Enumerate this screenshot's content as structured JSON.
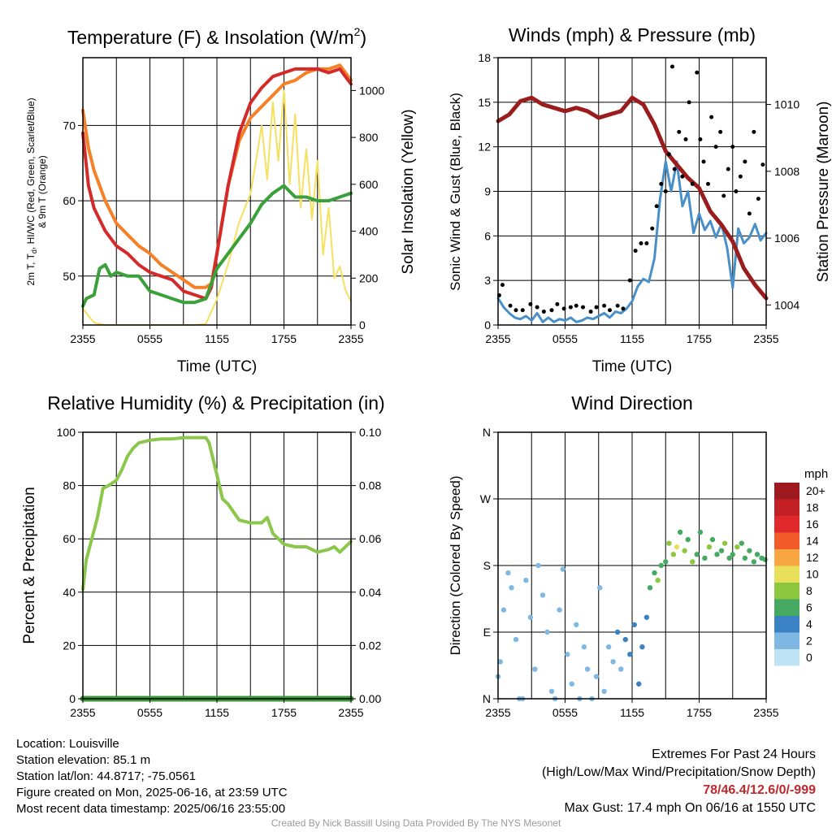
{
  "panels": {
    "temp": {
      "title": "Temperature (F) & Insolation (W/m",
      "title_sup": "2",
      "title_end": ")",
      "ylabel_line1": "2m T, T, HI/WC (Red, Green, Scarlet/Blue)",
      "ylabel_line1_a": "2m T, T",
      "ylabel_line1_sub": "d",
      "ylabel_line1_b": ", HI/WC (Red, Green, Scarlet/Blue)",
      "ylabel_line2": "& 9m T (Orange)",
      "y2label": "Solar Insolation (Yellow)",
      "xlabel": "Time (UTC)"
    },
    "wind": {
      "title": "Winds (mph) & Pressure (mb)",
      "ylabel": "Sonic Wind & Gust (Blue, Black)",
      "y2label": "Station Pressure (Maroon)",
      "xlabel": "Time (UTC)"
    },
    "rh": {
      "title": "Relative Humidity (%) & Precipitation (in)",
      "ylabel": "Percent & Precipitation"
    },
    "dir": {
      "title": "Wind Direction",
      "ylabel": "Direction (Colored By Speed)",
      "legend_title": "mph",
      "legend_labels": [
        "20+",
        "18",
        "16",
        "14",
        "12",
        "10",
        "8",
        "6",
        "4",
        "2",
        "0"
      ]
    }
  },
  "info": {
    "location": "Location: Louisville",
    "elevation": "Station elevation: 85.1 m",
    "latlon": "Station lat/lon: 44.8717; -75.0561",
    "created": "Figure created on Mon, 2025-06-16, at 23:59 UTC",
    "recent": "Most recent data timestamp: 2025/06/16 23:55:00"
  },
  "extremes": {
    "title": "Extremes For Past 24 Hours",
    "subtitle": "(High/Low/Max Wind/Precipitation/Snow Depth)",
    "values": "78/46.4/12.6/0/-999",
    "gust": "Max Gust: 17.4 mph On 06/16 at 1550 UTC"
  },
  "credit": "Created By Nick Bassill Using Data Provided By The NYS Mesonet",
  "colors": {
    "temp": "#d42a2a",
    "dewpoint": "#3aa03a",
    "temp9m": "#f58025",
    "solar": "#f5e060",
    "wind": "#4a90c8",
    "gust": "#000000",
    "pressure": "#9a1c1c",
    "rh": "#8ac74a",
    "precip": "#3a9a3a"
  },
  "chart_data": [
    {
      "type": "line",
      "panel": "temp",
      "title": "Temperature (F) & Insolation (W/m2)",
      "xlabel": "Time (UTC)",
      "x_ticks": [
        "2355",
        "0555",
        "1155",
        "1755",
        "2355"
      ],
      "xlim": [
        0,
        24
      ],
      "ylim": [
        43.5,
        79
      ],
      "y_ticks": [
        50,
        60,
        70
      ],
      "y2lim": [
        0,
        1140
      ],
      "y2_ticks": [
        0,
        200,
        400,
        600,
        800,
        1000
      ],
      "grid": true,
      "series": [
        {
          "name": "2m T",
          "axis": "y",
          "x": [
            0,
            0.5,
            1,
            2,
            3,
            4,
            5,
            6,
            7,
            8,
            9,
            10,
            11,
            11.5,
            12,
            13,
            14,
            15,
            16,
            17,
            18,
            19,
            20,
            21,
            22,
            23,
            23.5,
            24
          ],
          "values": [
            69,
            62,
            59,
            56,
            54,
            53,
            51.5,
            50.5,
            50,
            49.5,
            48,
            47.5,
            47,
            48.5,
            53,
            62,
            69,
            73,
            75,
            76.5,
            77,
            77.5,
            77.5,
            77.5,
            77,
            77.5,
            76.5,
            75.5
          ]
        },
        {
          "name": "Td",
          "axis": "y",
          "x": [
            0,
            0.3,
            1,
            1.5,
            2,
            2.5,
            3,
            4,
            5,
            6,
            7,
            8,
            9,
            10,
            11,
            11.5,
            12,
            13,
            14,
            15,
            16,
            17,
            18,
            19,
            20,
            21,
            22,
            23,
            24
          ],
          "values": [
            46,
            47,
            47.5,
            51,
            51.5,
            50,
            50.5,
            50,
            50,
            48,
            47.5,
            47,
            46.5,
            46.5,
            47,
            49,
            51,
            53,
            55,
            57,
            59.5,
            61,
            62,
            60.5,
            60.5,
            60,
            60,
            60.5,
            61
          ]
        },
        {
          "name": "9m T",
          "axis": "y",
          "x": [
            0,
            0.5,
            1,
            2,
            3,
            4,
            5,
            6,
            7,
            8,
            9,
            10,
            11,
            11.5,
            12,
            13,
            14,
            15,
            16,
            17,
            18,
            19,
            20,
            21,
            22,
            23,
            23.5,
            24
          ],
          "values": [
            72,
            67,
            64,
            60,
            57,
            55.5,
            54,
            53,
            51.5,
            50.5,
            49.5,
            48.5,
            48.5,
            49,
            53,
            62,
            68,
            71,
            72.5,
            74,
            75.5,
            76,
            77,
            77.5,
            77.5,
            78,
            77,
            76
          ]
        },
        {
          "name": "Solar",
          "axis": "y2",
          "x": [
            0,
            0.5,
            1,
            2,
            3,
            4,
            5,
            6,
            7,
            8,
            9,
            10,
            11,
            12,
            13,
            14,
            15,
            15.5,
            16,
            16.5,
            17,
            17.5,
            18,
            18.5,
            19,
            19.5,
            20,
            20.5,
            21,
            21.5,
            22,
            22.5,
            23,
            23.5,
            24
          ],
          "values": [
            70,
            40,
            10,
            0,
            0,
            0,
            0,
            0,
            0,
            0,
            0,
            0,
            5,
            110,
            260,
            440,
            560,
            700,
            850,
            620,
            950,
            700,
            1000,
            600,
            900,
            500,
            750,
            450,
            700,
            300,
            500,
            200,
            250,
            150,
            100
          ]
        }
      ]
    },
    {
      "type": "line",
      "panel": "wind",
      "title": "Winds (mph) & Pressure (mb)",
      "xlabel": "Time (UTC)",
      "x_ticks": [
        "2355",
        "0555",
        "1155",
        "1755",
        "2355"
      ],
      "xlim": [
        0,
        24
      ],
      "ylim": [
        0,
        18
      ],
      "y_ticks": [
        0,
        3,
        6,
        9,
        12,
        15,
        18
      ],
      "y2lim": [
        1003.4,
        1011.4
      ],
      "y2_ticks": [
        1004,
        1006,
        1008,
        1010
      ],
      "grid": true,
      "series": [
        {
          "name": "Sonic Wind",
          "axis": "y",
          "x": [
            0,
            0.5,
            1,
            1.5,
            2,
            2.5,
            3,
            3.5,
            4,
            4.5,
            5,
            5.5,
            6,
            6.5,
            7,
            7.5,
            8,
            8.5,
            9,
            9.5,
            10,
            10.5,
            11,
            11.5,
            12,
            12.5,
            13,
            13.5,
            14,
            14.5,
            15,
            15.5,
            16,
            16.5,
            17,
            17.5,
            18,
            18.5,
            19,
            19.5,
            20,
            20.5,
            21,
            21.5,
            22,
            22.5,
            23,
            23.5,
            24
          ],
          "values": [
            1.8,
            1.2,
            0.8,
            0.5,
            0.4,
            0.6,
            0.3,
            0.8,
            0.2,
            0.5,
            0.2,
            0.4,
            0.3,
            0.5,
            0.2,
            0.3,
            0.5,
            0.4,
            0.6,
            0.8,
            0.5,
            0.9,
            0.8,
            1.1,
            1.6,
            2.6,
            3.1,
            2.9,
            4.5,
            8.5,
            11,
            9,
            11,
            8,
            9,
            6.2,
            7.5,
            6.4,
            7,
            5.9,
            6.8,
            5.2,
            2.5,
            6.5,
            5.5,
            5.9,
            6.8,
            5.7,
            6.2
          ]
        },
        {
          "name": "Gust",
          "axis": "y",
          "x": [
            0.1,
            0.4,
            1.1,
            1.6,
            2.2,
            2.9,
            3.5,
            4.1,
            4.8,
            5.3,
            5.9,
            6.5,
            7,
            7.6,
            8.3,
            8.8,
            9.5,
            10,
            10.7,
            11.2,
            11.8,
            12.3,
            12.8,
            13.3,
            13.8,
            14.2,
            14.6,
            15,
            15.3,
            15.6,
            15.8,
            16.2,
            16.5,
            16.8,
            17.1,
            17.4,
            17.8,
            18.1,
            18.4,
            18.8,
            19.1,
            19.5,
            19.9,
            20.2,
            20.6,
            21,
            21.3,
            21.7,
            22.1,
            22.5,
            22.9,
            23.3,
            23.7
          ],
          "values": [
            2,
            2.7,
            1.3,
            1,
            1,
            1.4,
            1.2,
            0.9,
            1,
            1.4,
            1.1,
            1.2,
            1.3,
            1.2,
            0.9,
            1.2,
            1.3,
            1,
            1.3,
            1.1,
            3,
            5,
            5.5,
            5.5,
            6.5,
            8,
            9.5,
            9,
            11.5,
            17.4,
            10.5,
            13,
            10,
            12.5,
            15,
            9.5,
            17,
            12.5,
            11,
            9.5,
            14,
            12,
            13,
            8.7,
            10.5,
            12,
            9,
            10,
            11,
            7.5,
            13,
            8.5,
            10.8
          ]
        },
        {
          "name": "Pressure",
          "axis": "y2",
          "x": [
            0,
            1,
            2,
            3,
            4,
            5,
            6,
            7,
            8,
            9,
            10,
            11,
            12,
            12.5,
            13,
            14,
            15,
            16,
            17,
            18,
            19,
            20,
            21,
            22,
            23,
            24
          ],
          "values": [
            1009.5,
            1009.7,
            1010.1,
            1010.2,
            1010,
            1009.9,
            1009.8,
            1009.9,
            1009.8,
            1009.6,
            1009.7,
            1009.8,
            1010.2,
            1010.1,
            1010,
            1009.4,
            1008.6,
            1008.2,
            1007.8,
            1007.5,
            1006.8,
            1006.4,
            1005.9,
            1005.1,
            1004.6,
            1004.2
          ]
        }
      ]
    },
    {
      "type": "line",
      "panel": "rh",
      "title": "Relative Humidity (%) & Precipitation (in)",
      "ylabel": "Percent & Precipitation",
      "x_ticks": [
        "2355",
        "0555",
        "1155",
        "1755",
        "2355"
      ],
      "xlim": [
        0,
        24
      ],
      "ylim": [
        0,
        100
      ],
      "y_ticks": [
        0,
        20,
        40,
        60,
        80,
        100
      ],
      "y2lim": [
        0,
        0.1
      ],
      "y2_ticks": [
        "0.00",
        "0.02",
        "0.04",
        "0.06",
        "0.08",
        "0.10"
      ],
      "grid": true,
      "series": [
        {
          "name": "RH",
          "axis": "y",
          "x": [
            0,
            0.3,
            0.8,
            1.3,
            1.8,
            2.3,
            3,
            3.5,
            4,
            4.5,
            5,
            6,
            7,
            8,
            9,
            10,
            10.5,
            11,
            11.3,
            12,
            12.5,
            13,
            14,
            15,
            16,
            16.5,
            17,
            18,
            19,
            20,
            21,
            22,
            22.5,
            23,
            23.5,
            24
          ],
          "values": [
            41,
            52,
            60,
            68,
            79,
            80,
            82,
            86,
            91,
            94,
            96,
            97,
            97.5,
            97.5,
            98,
            98,
            98,
            98,
            96,
            84,
            75,
            73,
            67,
            66,
            66,
            68,
            62,
            58,
            57,
            57,
            55,
            56,
            57,
            55,
            57,
            59
          ]
        },
        {
          "name": "Precipitation",
          "axis": "y2",
          "x": [
            0,
            24
          ],
          "values": [
            0,
            0
          ]
        }
      ]
    },
    {
      "type": "scatter",
      "panel": "dir",
      "title": "Wind Direction",
      "ylabel": "Direction (Colored By Speed)",
      "x_ticks": [
        "2355",
        "0555",
        "1155",
        "1755",
        "2355"
      ],
      "xlim": [
        0,
        24
      ],
      "ylim": [
        0,
        360
      ],
      "y_ticks": [
        "N",
        "E",
        "S",
        "W",
        "N"
      ],
      "grid": true,
      "legend": {
        "title": "mph",
        "labels": [
          "20+",
          "18",
          "16",
          "14",
          "12",
          "10",
          "8",
          "6",
          "4",
          "2",
          "0"
        ],
        "colors": [
          "#9e1a1e",
          "#c42127",
          "#e0282d",
          "#f15a29",
          "#f7a541",
          "#e8e05a",
          "#8dc63f",
          "#46a962",
          "#3b82c4",
          "#7fb8e2",
          "#bfe3f5"
        ],
        "position": "right"
      },
      "series": [
        {
          "name": "Direction",
          "x": [
            0,
            0.2,
            0.5,
            0.9,
            1.2,
            1.6,
            1.9,
            2.2,
            2.5,
            2.9,
            3.3,
            3.6,
            4,
            4.4,
            4.8,
            5.1,
            5.5,
            5.8,
            6.2,
            6.6,
            7,
            7.3,
            7.7,
            8,
            8.4,
            8.8,
            9.1,
            9.5,
            9.9,
            10.3,
            10.7,
            11,
            11.4,
            11.8,
            12.2,
            12.6,
            12.9,
            13.3,
            13.6,
            14,
            14.3,
            14.6,
            15,
            15.3,
            15.7,
            16,
            16.3,
            16.7,
            17,
            17.4,
            17.8,
            18.1,
            18.5,
            18.9,
            19.2,
            19.6,
            20,
            20.3,
            20.7,
            21,
            21.4,
            21.8,
            22.1,
            22.5,
            22.9,
            23.2,
            23.6,
            23.9
          ],
          "values": [
            30,
            50,
            120,
            170,
            150,
            80,
            0,
            0,
            160,
            110,
            40,
            180,
            140,
            90,
            10,
            0,
            120,
            175,
            60,
            20,
            100,
            0,
            70,
            40,
            0,
            30,
            150,
            10,
            70,
            50,
            90,
            40,
            80,
            60,
            100,
            20,
            70,
            110,
            150,
            170,
            160,
            180,
            185,
            210,
            195,
            205,
            225,
            200,
            215,
            185,
            195,
            225,
            190,
            205,
            215,
            195,
            200,
            210,
            190,
            195,
            205,
            210,
            190,
            200,
            185,
            195,
            190,
            188
          ],
          "speeds": [
            1,
            1,
            1,
            1,
            1,
            1,
            1,
            1,
            1,
            1,
            1,
            1,
            1,
            1,
            1,
            1,
            1,
            1,
            1,
            1,
            1,
            1,
            1,
            1,
            1,
            1,
            1,
            1,
            2,
            2,
            3,
            2,
            3,
            3,
            4,
            3,
            4,
            4,
            5,
            5,
            7,
            6,
            6,
            8,
            7,
            9,
            6,
            7,
            6,
            7,
            5,
            6,
            6,
            7,
            6,
            5,
            6,
            7,
            5,
            6,
            7,
            6,
            5,
            6,
            6,
            5,
            6,
            6
          ]
        }
      ]
    }
  ]
}
